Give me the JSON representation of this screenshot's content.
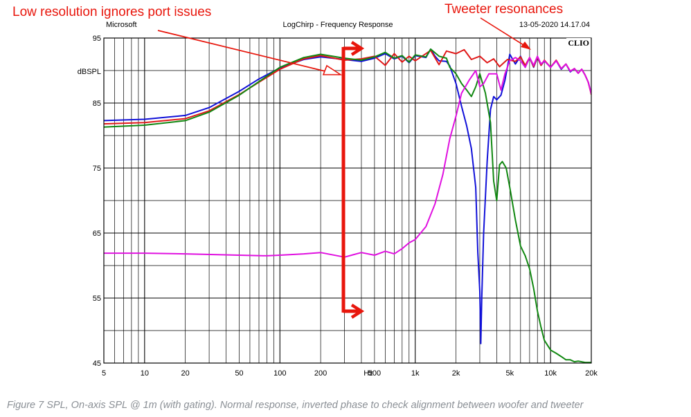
{
  "header": {
    "left": "Microsoft",
    "center": "LogChirp - Frequency Response",
    "right": "13-05-2020 14.17.04",
    "brand": "CLIO"
  },
  "annotations": {
    "port": "Low resolution ignores port issues",
    "tweeter": "Tweeter resonances"
  },
  "caption": "Figure 7 SPL, On-axis SPL @ 1m (with gating). Normal response, inverted phase to check alignment between woofer and tweeter",
  "colors": {
    "blue": "#1010d8",
    "red": "#e01818",
    "green": "#118811",
    "magenta": "#e010e0",
    "annotation": "#e8160c"
  },
  "chart_data": {
    "type": "line",
    "ylabel": "dBSPL",
    "xlabel": "Hz",
    "xscale": "log",
    "xlim": [
      5,
      20000
    ],
    "ylim": [
      45,
      95
    ],
    "xticks": [
      {
        "v": 5,
        "label": "5"
      },
      {
        "v": 10,
        "label": "10"
      },
      {
        "v": 20,
        "label": "20"
      },
      {
        "v": 50,
        "label": "50"
      },
      {
        "v": 100,
        "label": "100"
      },
      {
        "v": 200,
        "label": "200"
      },
      {
        "v": 500,
        "label": "500"
      },
      {
        "v": 1000,
        "label": "1k"
      },
      {
        "v": 2000,
        "label": "2k"
      },
      {
        "v": 5000,
        "label": "5k"
      },
      {
        "v": 10000,
        "label": "10k"
      },
      {
        "v": 20000,
        "label": "20k"
      }
    ],
    "xunit_label_at": 400,
    "yticks": [
      45,
      55,
      65,
      75,
      85,
      95
    ],
    "grid": true,
    "series": [
      {
        "color": "blue",
        "points": [
          [
            5,
            82.3
          ],
          [
            10,
            82.5
          ],
          [
            20,
            83.1
          ],
          [
            30,
            84.3
          ],
          [
            50,
            86.8
          ],
          [
            70,
            88.7
          ],
          [
            100,
            90.4
          ],
          [
            150,
            91.7
          ],
          [
            200,
            92.1
          ],
          [
            300,
            91.7
          ],
          [
            400,
            91.4
          ],
          [
            500,
            91.9
          ],
          [
            600,
            92.6
          ],
          [
            700,
            91.8
          ],
          [
            800,
            92.2
          ],
          [
            900,
            91.2
          ],
          [
            1000,
            92.3
          ],
          [
            1200,
            92.0
          ],
          [
            1300,
            93.3
          ],
          [
            1400,
            92.2
          ],
          [
            1500,
            91.5
          ],
          [
            1700,
            91.4
          ],
          [
            1800,
            90.7
          ],
          [
            2000,
            88.0
          ],
          [
            2200,
            84.5
          ],
          [
            2400,
            81.5
          ],
          [
            2600,
            78.0
          ],
          [
            2800,
            72.0
          ],
          [
            2900,
            62.0
          ],
          [
            3000,
            56.0
          ],
          [
            3050,
            48.0
          ],
          [
            3100,
            55.0
          ],
          [
            3200,
            65.0
          ],
          [
            3400,
            76.0
          ],
          [
            3600,
            84.0
          ],
          [
            3800,
            86.0
          ],
          [
            4000,
            85.5
          ],
          [
            4300,
            86.2
          ],
          [
            4600,
            88.5
          ],
          [
            5000,
            92.5
          ],
          [
            5500,
            91.0
          ],
          [
            6000,
            92.2
          ],
          [
            6500,
            90.5
          ],
          [
            7000,
            92.0
          ],
          [
            7500,
            90.5
          ],
          [
            8000,
            92.0
          ],
          [
            8500,
            90.8
          ],
          [
            9000,
            91.5
          ],
          [
            10000,
            90.5
          ],
          [
            11000,
            91.5
          ],
          [
            12000,
            90.2
          ],
          [
            13000,
            91.0
          ],
          [
            14000,
            89.8
          ],
          [
            15000,
            90.3
          ],
          [
            16000,
            89.6
          ],
          [
            17000,
            90.2
          ],
          [
            18000,
            89.3
          ],
          [
            19000,
            88.2
          ],
          [
            20000,
            86.5
          ]
        ]
      },
      {
        "color": "red",
        "points": [
          [
            5,
            81.8
          ],
          [
            10,
            82.0
          ],
          [
            20,
            82.6
          ],
          [
            30,
            83.8
          ],
          [
            50,
            86.3
          ],
          [
            70,
            88.2
          ],
          [
            100,
            90.2
          ],
          [
            150,
            91.8
          ],
          [
            200,
            92.3
          ],
          [
            300,
            91.6
          ],
          [
            400,
            91.8
          ],
          [
            500,
            92.2
          ],
          [
            600,
            90.8
          ],
          [
            700,
            92.6
          ],
          [
            800,
            91.3
          ],
          [
            900,
            92.2
          ],
          [
            1000,
            91.5
          ],
          [
            1300,
            93.1
          ],
          [
            1500,
            90.9
          ],
          [
            1700,
            93.0
          ],
          [
            2000,
            92.6
          ],
          [
            2300,
            93.2
          ],
          [
            2600,
            91.7
          ],
          [
            3000,
            92.2
          ],
          [
            3400,
            91.2
          ],
          [
            3800,
            91.8
          ],
          [
            4200,
            90.6
          ],
          [
            4800,
            91.7
          ],
          [
            5500,
            91.4
          ],
          [
            6000,
            92.1
          ],
          [
            6500,
            90.8
          ],
          [
            7000,
            92.0
          ],
          [
            7500,
            90.6
          ],
          [
            8000,
            92.1
          ],
          [
            8500,
            90.8
          ],
          [
            9000,
            91.6
          ],
          [
            10000,
            90.5
          ],
          [
            11000,
            91.6
          ],
          [
            12000,
            90.3
          ],
          [
            13000,
            91.0
          ],
          [
            14000,
            89.9
          ],
          [
            15000,
            90.3
          ],
          [
            16000,
            89.6
          ],
          [
            17000,
            90.2
          ],
          [
            18000,
            89.3
          ],
          [
            19000,
            88.2
          ],
          [
            20000,
            86.3
          ]
        ]
      },
      {
        "color": "green",
        "points": [
          [
            5,
            81.3
          ],
          [
            10,
            81.6
          ],
          [
            20,
            82.3
          ],
          [
            30,
            83.6
          ],
          [
            50,
            86.2
          ],
          [
            70,
            88.3
          ],
          [
            100,
            90.5
          ],
          [
            150,
            92.0
          ],
          [
            200,
            92.5
          ],
          [
            300,
            91.9
          ],
          [
            400,
            91.6
          ],
          [
            500,
            92.1
          ],
          [
            600,
            92.8
          ],
          [
            700,
            91.9
          ],
          [
            800,
            92.3
          ],
          [
            900,
            91.3
          ],
          [
            1000,
            92.4
          ],
          [
            1200,
            92.1
          ],
          [
            1300,
            93.3
          ],
          [
            1500,
            92.2
          ],
          [
            1700,
            91.9
          ],
          [
            1800,
            90.5
          ],
          [
            2000,
            89.5
          ],
          [
            2200,
            88.0
          ],
          [
            2400,
            87.0
          ],
          [
            2600,
            86.0
          ],
          [
            2800,
            87.5
          ],
          [
            3000,
            89.5
          ],
          [
            3300,
            86.5
          ],
          [
            3600,
            82.0
          ],
          [
            3800,
            73.0
          ],
          [
            4000,
            70.0
          ],
          [
            4200,
            75.5
          ],
          [
            4400,
            76.0
          ],
          [
            4700,
            75.0
          ],
          [
            5000,
            72.0
          ],
          [
            5500,
            67.0
          ],
          [
            6000,
            63.0
          ],
          [
            6500,
            61.5
          ],
          [
            7000,
            59.5
          ],
          [
            7500,
            56.5
          ],
          [
            8000,
            53.0
          ],
          [
            8500,
            50.5
          ],
          [
            9000,
            48.5
          ],
          [
            10000,
            47.0
          ],
          [
            11000,
            46.5
          ],
          [
            12000,
            46.0
          ],
          [
            13000,
            45.5
          ],
          [
            14000,
            45.5
          ],
          [
            15000,
            45.2
          ],
          [
            16000,
            45.3
          ],
          [
            18000,
            45.1
          ],
          [
            20000,
            45.1
          ]
        ]
      },
      {
        "color": "magenta",
        "points": [
          [
            5,
            61.9
          ],
          [
            10,
            61.9
          ],
          [
            20,
            61.8
          ],
          [
            50,
            61.6
          ],
          [
            80,
            61.5
          ],
          [
            100,
            61.6
          ],
          [
            150,
            61.8
          ],
          [
            200,
            62.0
          ],
          [
            300,
            61.3
          ],
          [
            400,
            62.0
          ],
          [
            500,
            61.6
          ],
          [
            600,
            62.2
          ],
          [
            700,
            61.8
          ],
          [
            800,
            62.6
          ],
          [
            900,
            63.5
          ],
          [
            1000,
            64.0
          ],
          [
            1200,
            66.0
          ],
          [
            1400,
            69.5
          ],
          [
            1600,
            74.0
          ],
          [
            1800,
            79.5
          ],
          [
            2000,
            83.0
          ],
          [
            2200,
            86.5
          ],
          [
            2500,
            88.5
          ],
          [
            2800,
            90.0
          ],
          [
            3000,
            87.5
          ],
          [
            3200,
            88.0
          ],
          [
            3500,
            89.5
          ],
          [
            4000,
            89.5
          ],
          [
            4300,
            87.0
          ],
          [
            4600,
            89.5
          ],
          [
            5000,
            91.5
          ],
          [
            5500,
            92.0
          ],
          [
            6000,
            91.5
          ],
          [
            6500,
            90.5
          ],
          [
            7000,
            92.0
          ],
          [
            7500,
            90.8
          ],
          [
            8000,
            92.2
          ],
          [
            8500,
            91.0
          ],
          [
            9000,
            91.5
          ],
          [
            10000,
            90.5
          ],
          [
            11000,
            91.5
          ],
          [
            12000,
            90.3
          ],
          [
            13000,
            91.0
          ],
          [
            14000,
            89.9
          ],
          [
            15000,
            90.3
          ],
          [
            16000,
            89.6
          ],
          [
            17000,
            90.2
          ],
          [
            18000,
            89.3
          ],
          [
            19000,
            88.2
          ],
          [
            20000,
            86.4
          ]
        ]
      }
    ]
  }
}
